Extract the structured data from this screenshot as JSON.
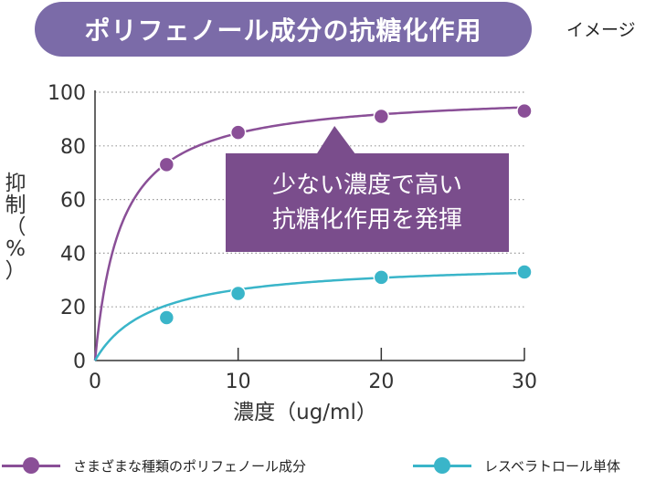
{
  "header": {
    "title": "ポリフェノール成分の抗糖化作用",
    "note": "イメージ"
  },
  "callout": {
    "line1": "少ない濃度で高い",
    "line2": "抗糖化作用を発揮"
  },
  "colors": {
    "title_bg": "#7b6ba8",
    "polyphenol": "#8a4f97",
    "resveratrol": "#3ab5c9",
    "callout_bg": "#7a4d8c"
  },
  "chart_data": {
    "type": "line",
    "title": "ポリフェノール成分の抗糖化作用",
    "xlabel": "濃度（ug/ml）",
    "ylabel_chars": [
      "抑",
      "制",
      "（",
      "%",
      "）"
    ],
    "xlim": [
      0,
      30
    ],
    "ylim": [
      0,
      100
    ],
    "x_ticks": [
      "0",
      "10",
      "20",
      "30"
    ],
    "x_tick_values": [
      0,
      10,
      20,
      30
    ],
    "y_ticks": [
      "0",
      "20",
      "40",
      "60",
      "80",
      "100"
    ],
    "y_tick_values": [
      0,
      20,
      40,
      60,
      80,
      100
    ],
    "grid": "horizontal dotted",
    "legend_position": "bottom",
    "series": [
      {
        "name": "さまざまな種類のポリフェノール成分",
        "color": "#8a4f97",
        "x": [
          5,
          10,
          20,
          30
        ],
        "y": [
          73,
          85,
          91,
          93
        ],
        "curve": {
          "ymax": 100,
          "k": 1.8
        }
      },
      {
        "name": "レスベラトロール単体",
        "color": "#3ab5c9",
        "x": [
          5,
          10,
          20,
          30
        ],
        "y": [
          16,
          25,
          31,
          33
        ],
        "curve": {
          "ymax": 37,
          "k": 4
        }
      }
    ]
  }
}
